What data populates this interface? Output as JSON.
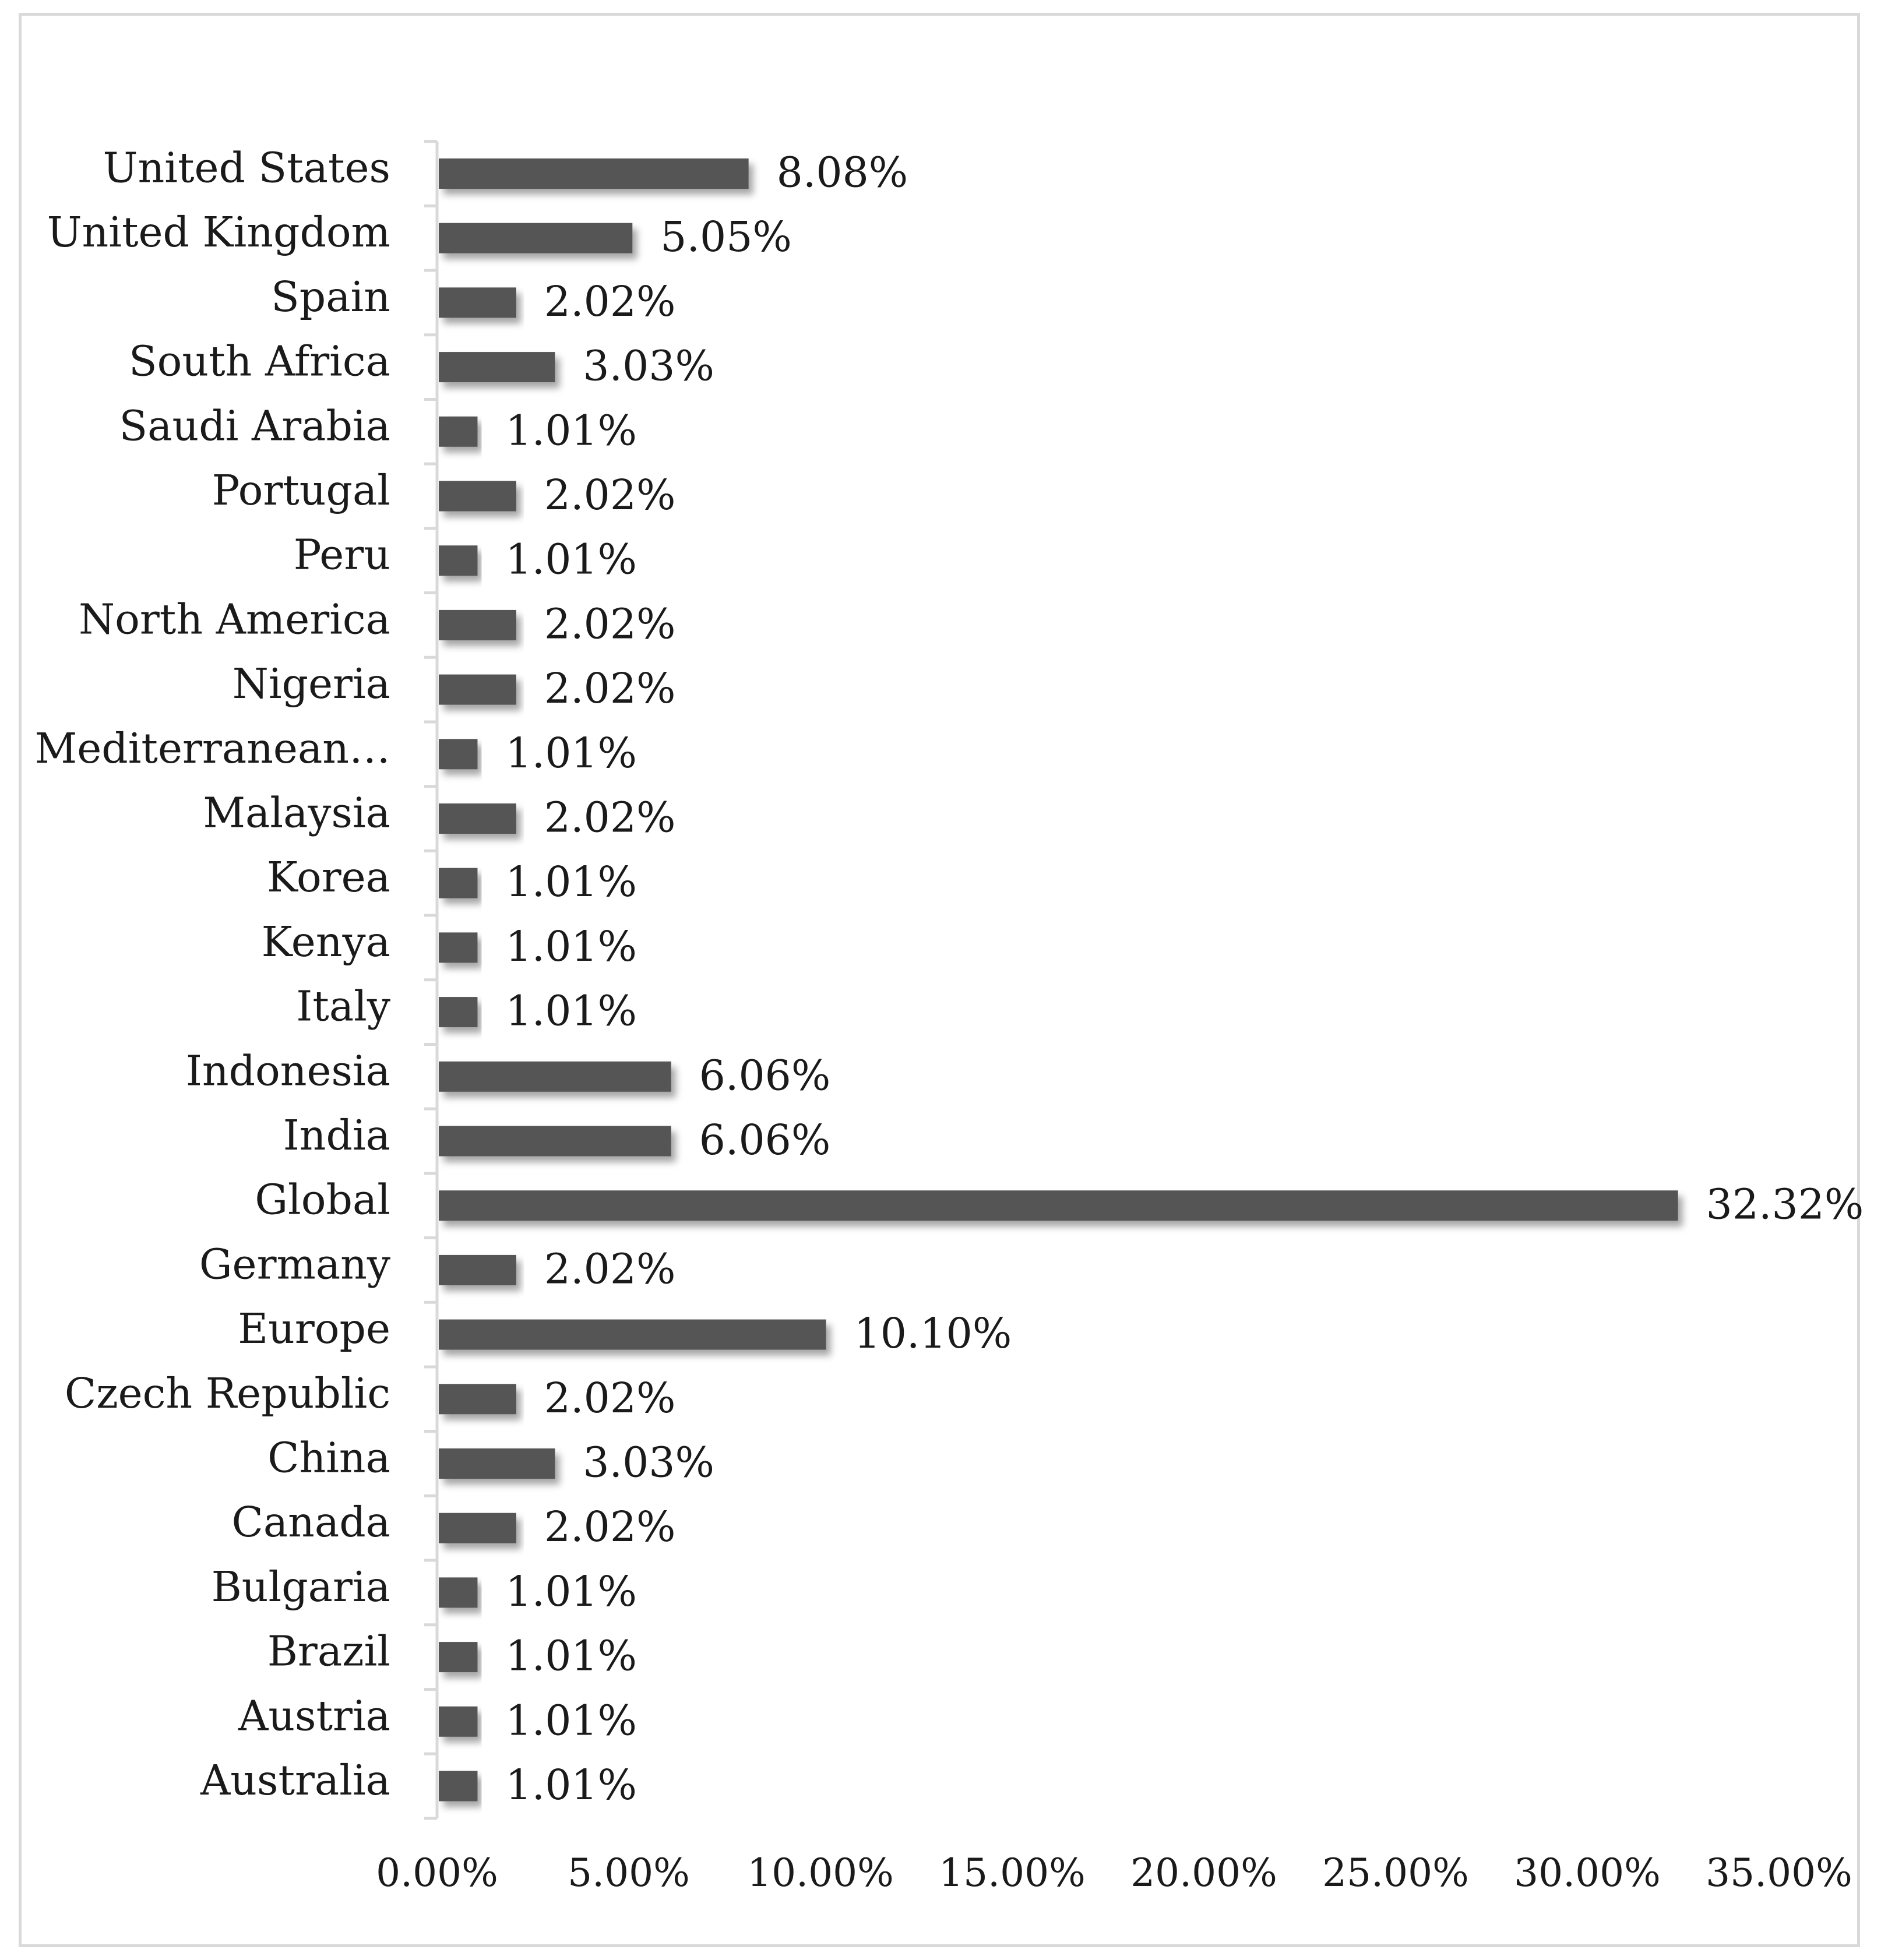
{
  "chart_data": {
    "type": "bar",
    "orientation": "horizontal",
    "categories": [
      "United States",
      "United Kingdom",
      "Spain",
      "South Africa",
      "Saudi Arabia",
      "Portugal",
      "Peru",
      "North America",
      "Nigeria",
      "Mediterranean…",
      "Malaysia",
      "Korea",
      "Kenya",
      "Italy",
      "Indonesia",
      "India",
      "Global",
      "Germany",
      "Europe",
      "Czech Republic",
      "China",
      "Canada",
      "Bulgaria",
      "Brazil",
      "Austria",
      "Australia"
    ],
    "values": [
      8.08,
      5.05,
      2.02,
      3.03,
      1.01,
      2.02,
      1.01,
      2.02,
      2.02,
      1.01,
      2.02,
      1.01,
      1.01,
      1.01,
      6.06,
      6.06,
      32.32,
      2.02,
      10.1,
      2.02,
      3.03,
      2.02,
      1.01,
      1.01,
      1.01,
      1.01
    ],
    "data_labels": [
      "8.08%",
      "5.05%",
      "2.02%",
      "3.03%",
      "1.01%",
      "2.02%",
      "1.01%",
      "2.02%",
      "2.02%",
      "1.01%",
      "2.02%",
      "1.01%",
      "1.01%",
      "1.01%",
      "6.06%",
      "6.06%",
      "32.32%",
      "2.02%",
      "10.10%",
      "2.02%",
      "3.03%",
      "2.02%",
      "1.01%",
      "1.01%",
      "1.01%",
      "1.01%"
    ],
    "x_ticks": [
      "0.00%",
      "5.00%",
      "10.00%",
      "15.00%",
      "20.00%",
      "25.00%",
      "30.00%",
      "35.00%"
    ],
    "xlim": [
      0,
      35
    ],
    "title": "",
    "xlabel": "",
    "ylabel": "",
    "grid": false,
    "legend": "none",
    "colors": {
      "bar": "#555555",
      "bar_shadow": "#9a9a9a",
      "axis": "#d9d9d9",
      "text": "#1a1a1a"
    }
  }
}
